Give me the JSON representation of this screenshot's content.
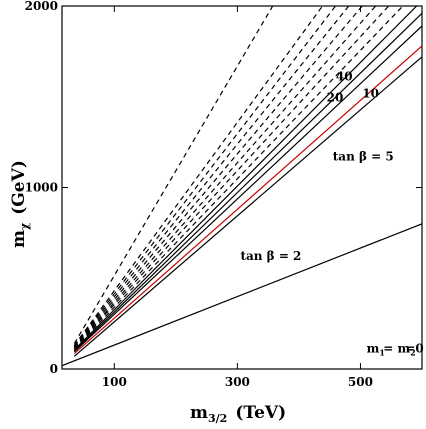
{
  "chart_data": {
    "type": "line",
    "xlabel": "m",
    "xlabel_sub": "3/2",
    "xlabel_unit": "(TeV)",
    "ylabel": "m",
    "ylabel_sub": "χ",
    "ylabel_unit": "(GeV)",
    "xlim": [
      15,
      600
    ],
    "ylim": [
      0,
      2000
    ],
    "x_ticks": [
      100,
      300,
      500
    ],
    "y_ticks": [
      0,
      1000,
      2000
    ],
    "annotations": [
      {
        "text": "40",
        "x": 460,
        "y": 1590
      },
      {
        "text": "20",
        "x": 445,
        "y": 1475
      },
      {
        "text": "10",
        "x": 503,
        "y": 1495
      },
      {
        "text": "tan β = 5",
        "x": 455,
        "y": 1150
      },
      {
        "text": "tan β = 2",
        "x": 305,
        "y": 600
      },
      {
        "text": "m",
        "sub": "1",
        "x": 510,
        "y": 90
      },
      {
        "text": "= m",
        "sub": "2",
        "x": 537,
        "y": 90
      },
      {
        "text": "=0",
        "x": 573,
        "y": 90
      }
    ],
    "series": [
      {
        "style": "solid",
        "color": "#000000",
        "x": [
          15,
          600
        ],
        "y": [
          18,
          800
        ]
      },
      {
        "style": "solid",
        "color": "#000000",
        "x": [
          35,
          600
        ],
        "y": [
          70,
          1720
        ]
      },
      {
        "style": "solid",
        "color": "#cc0000",
        "x": [
          35,
          600
        ],
        "y": [
          85,
          1780
        ]
      },
      {
        "style": "solid",
        "color": "#000000",
        "x": [
          35,
          600
        ],
        "y": [
          95,
          1890
        ]
      },
      {
        "style": "solid",
        "color": "#000000",
        "x": [
          35,
          600
        ],
        "y": [
          100,
          1960
        ]
      },
      {
        "style": "solid",
        "color": "#000000",
        "x": [
          35,
          600
        ],
        "y": [
          105,
          2030
        ]
      },
      {
        "style": "dashed",
        "color": "#000000",
        "x": [
          35,
          600
        ],
        "y": [
          110,
          2110
        ]
      },
      {
        "style": "dashed",
        "color": "#000000",
        "x": [
          35,
          600
        ],
        "y": [
          115,
          2200
        ]
      },
      {
        "style": "dashed",
        "color": "#000000",
        "x": [
          35,
          600
        ],
        "y": [
          118,
          2290
        ]
      },
      {
        "style": "dashed",
        "color": "#000000",
        "x": [
          35,
          600
        ],
        "y": [
          122,
          2390
        ]
      },
      {
        "style": "dashed",
        "color": "#000000",
        "x": [
          35,
          600
        ],
        "y": [
          125,
          2500
        ]
      },
      {
        "style": "dashed",
        "color": "#000000",
        "x": [
          35,
          600
        ],
        "y": [
          128,
          2620
        ]
      },
      {
        "style": "dashed",
        "color": "#000000",
        "x": [
          35,
          600
        ],
        "y": [
          130,
          2750
        ]
      },
      {
        "style": "dashed",
        "color": "#000000",
        "x": [
          35,
          600
        ],
        "y": [
          140,
          3400
        ]
      }
    ]
  }
}
